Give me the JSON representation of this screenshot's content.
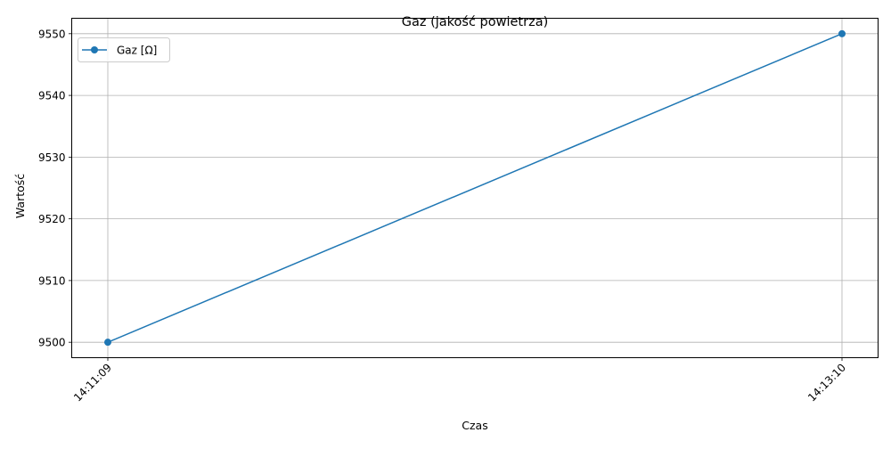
{
  "chart_data": {
    "type": "line",
    "title": "Gaz (jakość powietrza)",
    "xlabel": "Czas",
    "ylabel": "Wartość",
    "categories": [
      "14:11:09",
      "14:13:10"
    ],
    "series": [
      {
        "name": "Gaz [Ω]",
        "values": [
          9500,
          9550
        ],
        "color": "#1f77b4",
        "marker": "circle"
      }
    ],
    "ylim": [
      9497.5,
      9552.5
    ],
    "yticks": [
      9500,
      9510,
      9520,
      9530,
      9540,
      9550
    ],
    "grid": true,
    "legend": "top-left",
    "xtick_rotation": 45
  }
}
